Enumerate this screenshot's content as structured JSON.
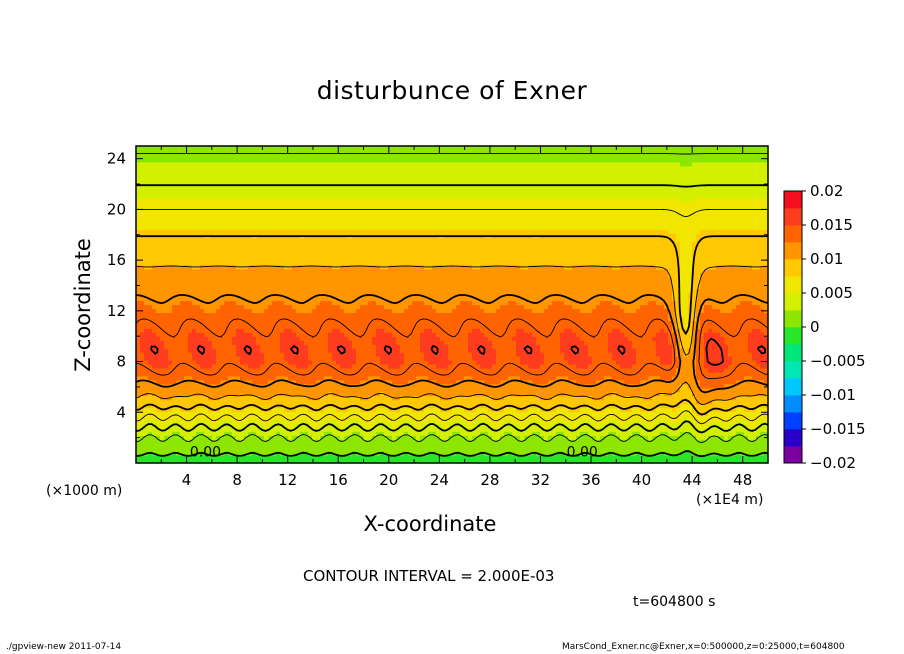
{
  "chart_data": {
    "type": "heatmap",
    "title": "disturbunce of Exner",
    "xlabel": "X-coordinate",
    "ylabel": "Z-coordinate",
    "x_unit_label": "(×1E4 m)",
    "y_unit_label": "(×1000 m)",
    "xlim": [
      0,
      50
    ],
    "ylim": [
      0,
      25
    ],
    "x_ticks": [
      4,
      8,
      12,
      16,
      20,
      24,
      28,
      32,
      36,
      40,
      44,
      48
    ],
    "x_tick_labels": [
      "4",
      "8",
      "12",
      "16",
      "20",
      "24",
      "28",
      "32",
      "36",
      "40",
      "44",
      "48"
    ],
    "y_ticks": [
      4,
      8,
      12,
      16,
      20,
      24
    ],
    "y_tick_labels": [
      "4",
      "8",
      "12",
      "16",
      "20",
      "24"
    ],
    "colorbar": {
      "range": [
        -0.02,
        0.02
      ],
      "interval": 0.0025,
      "ticks": [
        0.02,
        0.015,
        0.01,
        0.005,
        0,
        -0.005,
        -0.01,
        -0.015,
        -0.02
      ],
      "tick_labels": [
        "0.02",
        "0.015",
        "0.01",
        "0.005",
        "0",
        "−0.005",
        "−0.01",
        "−0.015",
        "−0.02"
      ],
      "colors": [
        "#7a00a0",
        "#2a00c8",
        "#0040ff",
        "#008cff",
        "#00c8ff",
        "#00e6b4",
        "#00e678",
        "#28e628",
        "#8ce600",
        "#d2f000",
        "#f0e600",
        "#ffc800",
        "#ff9600",
        "#ff6400",
        "#ff3c1e",
        "#f50f1e"
      ]
    },
    "contour_interval": 0.002,
    "contour_labels": [
      {
        "x": 5.5,
        "z": 0.9,
        "text": "0.00"
      },
      {
        "x": 35.3,
        "z": 0.9,
        "text": "0.00"
      }
    ],
    "profile": {
      "z": [
        0,
        1,
        2,
        3,
        4,
        5,
        6,
        7,
        8,
        9,
        10,
        11,
        12,
        13,
        14,
        15,
        16,
        17,
        18,
        19,
        20,
        21,
        22,
        23,
        24,
        25
      ],
      "value": [
        -0.001,
        0.0005,
        0.002,
        0.0045,
        0.007,
        0.0095,
        0.0115,
        0.0135,
        0.015,
        0.0152,
        0.0148,
        0.0138,
        0.0128,
        0.012,
        0.0112,
        0.0104,
        0.0096,
        0.0088,
        0.0079,
        0.007,
        0.006,
        0.005,
        0.0039,
        0.003,
        0.0022,
        0.0017
      ]
    },
    "disturbance": {
      "x_center": 43.5,
      "x_width": 0.9
    }
  },
  "header": {
    "contour_interval_text": "CONTOUR INTERVAL = 2.000E-03",
    "time_text": "t=604800 s"
  },
  "footer": {
    "left": "./gpview-new   2011-07-14",
    "right": "MarsCond_Exner.nc@Exner,x=0:500000,z=0:25000,t=604800"
  }
}
